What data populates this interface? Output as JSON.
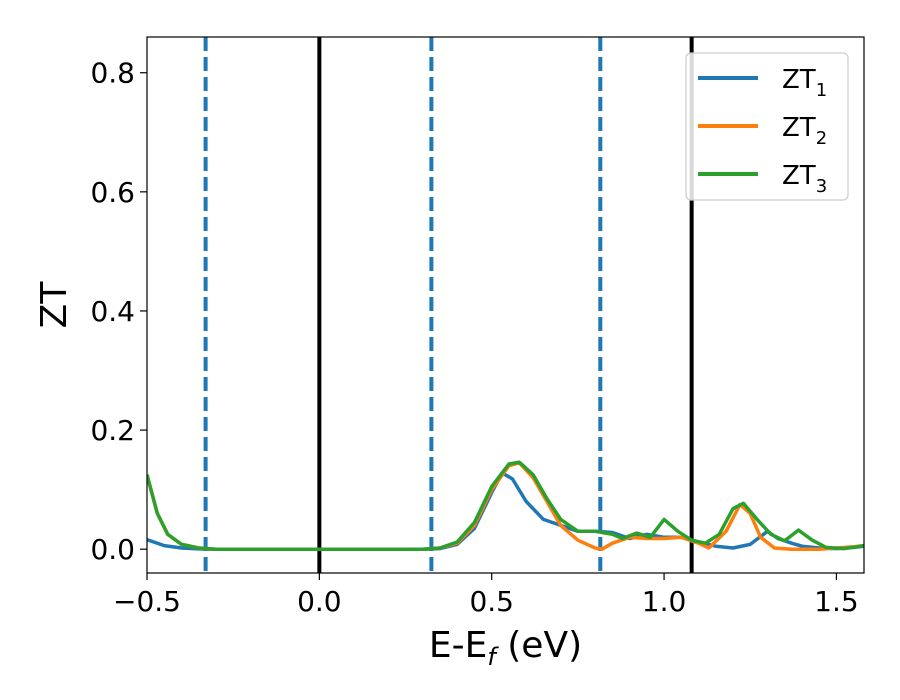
{
  "chart_data": {
    "type": "line",
    "xlabel": {
      "main": "E-E",
      "sub": "f",
      "suffix": " (eV)"
    },
    "ylabel": "ZT",
    "xlim": [
      -0.5,
      1.58
    ],
    "ylim": [
      -0.04,
      0.86
    ],
    "xticks": [
      {
        "value": -0.5,
        "label": "−0.5"
      },
      {
        "value": 0.0,
        "label": "0.0"
      },
      {
        "value": 0.5,
        "label": "0.5"
      },
      {
        "value": 1.0,
        "label": "1.0"
      },
      {
        "value": 1.5,
        "label": "1.5"
      }
    ],
    "yticks": [
      {
        "value": 0.0,
        "label": "0.0"
      },
      {
        "value": 0.2,
        "label": "0.2"
      },
      {
        "value": 0.4,
        "label": "0.4"
      },
      {
        "value": 0.6,
        "label": "0.6"
      },
      {
        "value": 0.8,
        "label": "0.8"
      }
    ],
    "grid": false,
    "legend_position": "top-right",
    "vertical_lines": [
      {
        "x": -0.33,
        "style": "dashed",
        "color": "#1f77b4"
      },
      {
        "x": 0.0,
        "style": "solid",
        "color": "#000000"
      },
      {
        "x": 0.325,
        "style": "dashed",
        "color": "#1f77b4"
      },
      {
        "x": 0.815,
        "style": "dashed",
        "color": "#1f77b4"
      },
      {
        "x": 1.08,
        "style": "solid",
        "color": "#000000"
      }
    ],
    "series": [
      {
        "name": {
          "main": "ZT",
          "sub": "1"
        },
        "color": "#1f77b4",
        "points": [
          [
            -0.5,
            0.016
          ],
          [
            -0.45,
            0.006
          ],
          [
            -0.4,
            0.002
          ],
          [
            -0.35,
            0.0005
          ],
          [
            -0.3,
            0.0
          ],
          [
            0.0,
            0.0
          ],
          [
            0.3,
            0.0
          ],
          [
            0.35,
            0.001
          ],
          [
            0.4,
            0.008
          ],
          [
            0.45,
            0.035
          ],
          [
            0.5,
            0.095
          ],
          [
            0.53,
            0.128
          ],
          [
            0.56,
            0.118
          ],
          [
            0.6,
            0.08
          ],
          [
            0.65,
            0.05
          ],
          [
            0.7,
            0.04
          ],
          [
            0.75,
            0.03
          ],
          [
            0.8,
            0.03
          ],
          [
            0.85,
            0.028
          ],
          [
            0.9,
            0.018
          ],
          [
            0.95,
            0.025
          ],
          [
            1.0,
            0.02
          ],
          [
            1.05,
            0.02
          ],
          [
            1.1,
            0.012
          ],
          [
            1.15,
            0.005
          ],
          [
            1.2,
            0.002
          ],
          [
            1.25,
            0.008
          ],
          [
            1.3,
            0.03
          ],
          [
            1.33,
            0.018
          ],
          [
            1.37,
            0.01
          ],
          [
            1.4,
            0.005
          ],
          [
            1.45,
            0.002
          ],
          [
            1.5,
            0.001
          ],
          [
            1.55,
            0.003
          ],
          [
            1.58,
            0.005
          ]
        ]
      },
      {
        "name": {
          "main": "ZT",
          "sub": "2"
        },
        "color": "#ff7f0e",
        "points": [
          [
            -0.5,
            0.125
          ],
          [
            -0.47,
            0.06
          ],
          [
            -0.44,
            0.025
          ],
          [
            -0.4,
            0.008
          ],
          [
            -0.35,
            0.002
          ],
          [
            -0.3,
            0.0
          ],
          [
            0.0,
            0.0
          ],
          [
            0.3,
            0.0
          ],
          [
            0.35,
            0.002
          ],
          [
            0.4,
            0.01
          ],
          [
            0.45,
            0.04
          ],
          [
            0.5,
            0.1
          ],
          [
            0.55,
            0.14
          ],
          [
            0.58,
            0.145
          ],
          [
            0.62,
            0.12
          ],
          [
            0.66,
            0.08
          ],
          [
            0.7,
            0.04
          ],
          [
            0.75,
            0.015
          ],
          [
            0.8,
            0.002
          ],
          [
            0.82,
            0.0
          ],
          [
            0.85,
            0.01
          ],
          [
            0.9,
            0.02
          ],
          [
            0.95,
            0.018
          ],
          [
            1.0,
            0.018
          ],
          [
            1.05,
            0.02
          ],
          [
            1.1,
            0.01
          ],
          [
            1.13,
            0.002
          ],
          [
            1.18,
            0.03
          ],
          [
            1.22,
            0.075
          ],
          [
            1.25,
            0.06
          ],
          [
            1.28,
            0.02
          ],
          [
            1.32,
            0.002
          ],
          [
            1.37,
            0.0
          ],
          [
            1.45,
            0.0
          ],
          [
            1.5,
            0.002
          ],
          [
            1.55,
            0.004
          ],
          [
            1.58,
            0.006
          ]
        ]
      },
      {
        "name": {
          "main": "ZT",
          "sub": "3"
        },
        "color": "#2ca02c",
        "points": [
          [
            -0.5,
            0.125
          ],
          [
            -0.47,
            0.06
          ],
          [
            -0.44,
            0.025
          ],
          [
            -0.4,
            0.008
          ],
          [
            -0.35,
            0.002
          ],
          [
            -0.3,
            0.0
          ],
          [
            0.0,
            0.0
          ],
          [
            0.3,
            0.0
          ],
          [
            0.35,
            0.002
          ],
          [
            0.4,
            0.012
          ],
          [
            0.45,
            0.045
          ],
          [
            0.5,
            0.105
          ],
          [
            0.55,
            0.143
          ],
          [
            0.58,
            0.146
          ],
          [
            0.62,
            0.125
          ],
          [
            0.66,
            0.085
          ],
          [
            0.7,
            0.05
          ],
          [
            0.75,
            0.03
          ],
          [
            0.8,
            0.03
          ],
          [
            0.85,
            0.025
          ],
          [
            0.88,
            0.018
          ],
          [
            0.92,
            0.027
          ],
          [
            0.96,
            0.02
          ],
          [
            1.0,
            0.05
          ],
          [
            1.04,
            0.03
          ],
          [
            1.08,
            0.015
          ],
          [
            1.12,
            0.01
          ],
          [
            1.16,
            0.025
          ],
          [
            1.2,
            0.068
          ],
          [
            1.23,
            0.077
          ],
          [
            1.27,
            0.05
          ],
          [
            1.31,
            0.025
          ],
          [
            1.35,
            0.014
          ],
          [
            1.39,
            0.032
          ],
          [
            1.43,
            0.015
          ],
          [
            1.47,
            0.003
          ],
          [
            1.52,
            0.001
          ],
          [
            1.56,
            0.004
          ],
          [
            1.58,
            0.006
          ]
        ]
      }
    ]
  }
}
